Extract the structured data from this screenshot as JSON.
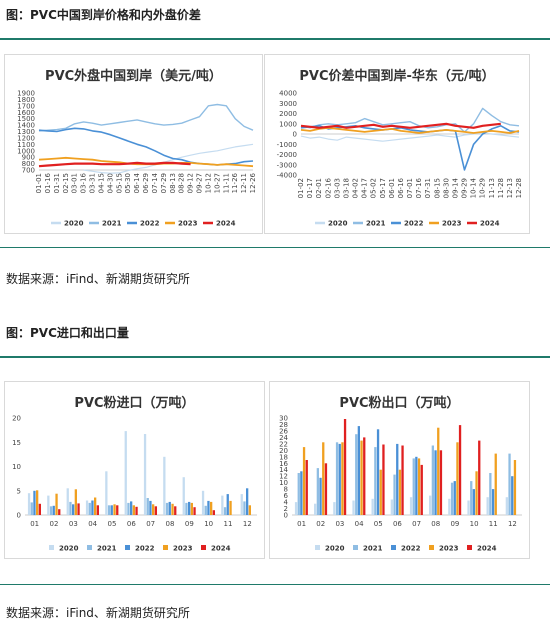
{
  "figure1": {
    "title": "图：PVC中国到岸价格和内外盘价差"
  },
  "figure2": {
    "title": "图：PVC进口和出口量"
  },
  "source1": "数据来源：iFind、新湖期货研究所",
  "source2": "数据来源：iFind、新湖期货研究所",
  "colors": {
    "2020": "#c5dcf0",
    "2021": "#8fbde3",
    "2022": "#4a90d6",
    "2023": "#f0a020",
    "2024": "#e02020",
    "accent": "#1f7a6a"
  },
  "chart_data": [
    {
      "type": "line",
      "title": "PVC外盘中国到岸（美元/吨）",
      "ylim": [
        700,
        1900
      ],
      "yticks": [
        700,
        800,
        900,
        1000,
        1100,
        1200,
        1300,
        1400,
        1500,
        1600,
        1700,
        1800,
        1900
      ],
      "categories": [
        "01-01",
        "01-16",
        "01-31",
        "02-15",
        "03-01",
        "03-16",
        "03-31",
        "04-15",
        "04-30",
        "05-15",
        "05-30",
        "06-14",
        "06-29",
        "07-14",
        "07-29",
        "08-13",
        "08-28",
        "09-12",
        "09-27",
        "10-12",
        "10-27",
        "11-11",
        "11-26",
        "12-11",
        "12-26"
      ],
      "series": [
        {
          "name": "2020",
          "values": [
            null,
            null,
            null,
            null,
            null,
            700,
            680,
            660,
            650,
            655,
            690,
            720,
            740,
            780,
            820,
            860,
            900,
            930,
            960,
            980,
            1000,
            1030,
            1060,
            1080,
            1100
          ]
        },
        {
          "name": "2021",
          "values": [
            1310,
            1320,
            1330,
            1350,
            1420,
            1450,
            1430,
            1400,
            1420,
            1440,
            1460,
            1480,
            1450,
            1420,
            1400,
            1410,
            1430,
            1480,
            1530,
            1700,
            1720,
            1700,
            1500,
            1380,
            1320
          ]
        },
        {
          "name": "2022",
          "values": [
            1320,
            1310,
            1300,
            1330,
            1350,
            1340,
            1310,
            1290,
            1250,
            1200,
            1150,
            1100,
            1060,
            1000,
            930,
            880,
            860,
            820,
            800,
            790,
            780,
            790,
            800,
            830,
            840
          ]
        },
        {
          "name": "2023",
          "values": [
            860,
            870,
            880,
            890,
            880,
            870,
            860,
            840,
            830,
            820,
            800,
            790,
            790,
            790,
            800,
            800,
            810,
            810,
            800,
            790,
            780,
            790,
            780,
            770,
            760
          ]
        },
        {
          "name": "2024",
          "values": [
            760,
            770,
            780,
            790,
            800,
            800,
            800,
            790,
            790,
            790,
            800,
            810,
            800,
            800,
            810,
            810,
            800,
            790,
            null,
            null,
            null,
            null,
            null,
            null,
            null
          ]
        }
      ]
    },
    {
      "type": "line",
      "title": "PVC价差中国到岸-华东（元/吨）",
      "ylim": [
        -4000,
        4000
      ],
      "yticks": [
        -4000,
        -3000,
        -2000,
        -1000,
        0,
        1000,
        2000,
        3000,
        4000
      ],
      "categories": [
        "01-02",
        "01-17",
        "02-01",
        "02-16",
        "03-03",
        "03-18",
        "04-02",
        "04-17",
        "05-02",
        "05-17",
        "06-01",
        "06-16",
        "07-01",
        "07-16",
        "07-31",
        "08-15",
        "08-30",
        "09-14",
        "09-29",
        "10-14",
        "10-29",
        "11-13",
        "11-28",
        "12-13",
        "12-28"
      ],
      "series": [
        {
          "name": "2020",
          "values": [
            -200,
            -400,
            -300,
            -500,
            -600,
            -300,
            -400,
            -500,
            -600,
            -700,
            -600,
            -500,
            -400,
            -300,
            -200,
            -100,
            -200,
            -300,
            -100,
            0,
            100,
            0,
            -100,
            -200,
            -300
          ]
        },
        {
          "name": "2021",
          "values": [
            800,
            600,
            900,
            1000,
            900,
            1000,
            1100,
            1500,
            1200,
            900,
            1000,
            1100,
            1200,
            800,
            600,
            700,
            900,
            1000,
            200,
            1000,
            2500,
            1800,
            1200,
            900,
            800
          ]
        },
        {
          "name": "2022",
          "values": [
            600,
            700,
            800,
            500,
            600,
            700,
            800,
            600,
            500,
            400,
            500,
            600,
            400,
            300,
            200,
            300,
            400,
            300,
            -3500,
            -1000,
            0,
            500,
            800,
            300,
            200
          ]
        },
        {
          "name": "2023",
          "values": [
            400,
            300,
            500,
            600,
            500,
            400,
            300,
            200,
            300,
            400,
            500,
            300,
            200,
            100,
            200,
            300,
            400,
            300,
            200,
            100,
            200,
            300,
            200,
            100,
            300
          ]
        },
        {
          "name": "2024",
          "values": [
            800,
            700,
            600,
            700,
            800,
            600,
            700,
            800,
            900,
            700,
            800,
            700,
            600,
            700,
            800,
            900,
            1000,
            800,
            700,
            600,
            800,
            900,
            1000,
            null,
            null
          ]
        }
      ]
    },
    {
      "type": "bar",
      "title": "PVC粉进口（万吨）",
      "ylim": [
        0,
        20
      ],
      "yticks": [
        0,
        5,
        10,
        15,
        20
      ],
      "categories": [
        "01",
        "02",
        "03",
        "04",
        "05",
        "06",
        "07",
        "08",
        "09",
        "10",
        "11",
        "12"
      ],
      "series": [
        {
          "name": "2020",
          "values": [
            4.5,
            4.0,
            5.5,
            3.0,
            9.0,
            17.3,
            16.7,
            12.0,
            7.8,
            5.0,
            4.0,
            4.3
          ]
        },
        {
          "name": "2021",
          "values": [
            2.6,
            1.8,
            2.7,
            2.5,
            2.0,
            2.5,
            3.5,
            2.5,
            2.5,
            1.9,
            1.6,
            2.8
          ]
        },
        {
          "name": "2022",
          "values": [
            5.0,
            1.9,
            2.2,
            3.0,
            2.0,
            2.8,
            2.9,
            2.7,
            2.7,
            2.9,
            4.3,
            5.5
          ]
        },
        {
          "name": "2023",
          "values": [
            5.1,
            4.4,
            5.3,
            3.6,
            2.2,
            2.0,
            2.2,
            2.3,
            2.5,
            2.7,
            2.9,
            2.0
          ]
        },
        {
          "name": "2024",
          "values": [
            2.3,
            1.2,
            2.4,
            2.0,
            2.0,
            1.7,
            1.8,
            1.8,
            1.6,
            1.0,
            null,
            null
          ]
        }
      ]
    },
    {
      "type": "bar",
      "title": "PVC粉出口（万吨）",
      "ylim": [
        0,
        30
      ],
      "yticks": [
        0,
        2,
        4,
        6,
        8,
        10,
        12,
        14,
        16,
        18,
        20,
        22,
        24,
        26,
        28,
        30
      ],
      "categories": [
        "01",
        "02",
        "03",
        "04",
        "05",
        "06",
        "07",
        "08",
        "09",
        "10",
        "11",
        "12"
      ],
      "series": [
        {
          "name": "2020",
          "values": [
            4.0,
            3.5,
            4.0,
            4.5,
            5.0,
            4.8,
            5.5,
            6.0,
            5.0,
            4.5,
            5.5,
            5.5
          ]
        },
        {
          "name": "2021",
          "values": [
            13.0,
            14.5,
            22.5,
            25.0,
            21.0,
            12.5,
            17.5,
            21.5,
            10.0,
            10.5,
            13.0,
            19.0
          ]
        },
        {
          "name": "2022",
          "values": [
            13.5,
            11.5,
            22.0,
            27.5,
            26.5,
            22.0,
            18.0,
            20.0,
            10.5,
            8.0,
            8.0,
            12.0
          ]
        },
        {
          "name": "2023",
          "values": [
            21.0,
            22.5,
            22.5,
            23.0,
            14.0,
            14.0,
            17.5,
            27.0,
            22.5,
            13.5,
            19.0,
            17.0
          ]
        },
        {
          "name": "2024",
          "values": [
            17.0,
            16.0,
            29.7,
            24.0,
            21.8,
            21.5,
            15.5,
            20.0,
            27.8,
            23.0,
            null,
            null
          ]
        }
      ]
    }
  ]
}
